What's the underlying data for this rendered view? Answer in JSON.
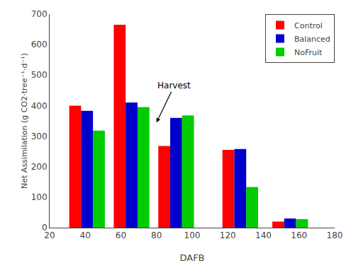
{
  "chart_data": {
    "type": "bar",
    "x": [
      41,
      66,
      91,
      127,
      155
    ],
    "series": [
      {
        "name": "Control",
        "color": "#ff0000",
        "values": [
          400,
          665,
          268,
          255,
          20
        ]
      },
      {
        "name": "Balanced",
        "color": "#0000cc",
        "values": [
          383,
          410,
          360,
          258,
          30
        ]
      },
      {
        "name": "NoFruit",
        "color": "#00cc00",
        "values": [
          318,
          395,
          368,
          133,
          28
        ]
      }
    ],
    "x_label": "DAFB",
    "y_label": "Net Assimilation (g CO2·tree⁻¹·d⁻¹)",
    "xlim": [
      20,
      180
    ],
    "xticks": [
      20,
      40,
      60,
      80,
      100,
      120,
      140,
      160,
      180
    ],
    "ylim": [
      0,
      700
    ],
    "yticks": [
      0,
      100,
      200,
      300,
      400,
      500,
      600,
      700
    ],
    "annotations": [
      {
        "text": "Harvest",
        "x": 80,
        "y": 345
      }
    ],
    "legend": "upper right",
    "grid": false
  }
}
